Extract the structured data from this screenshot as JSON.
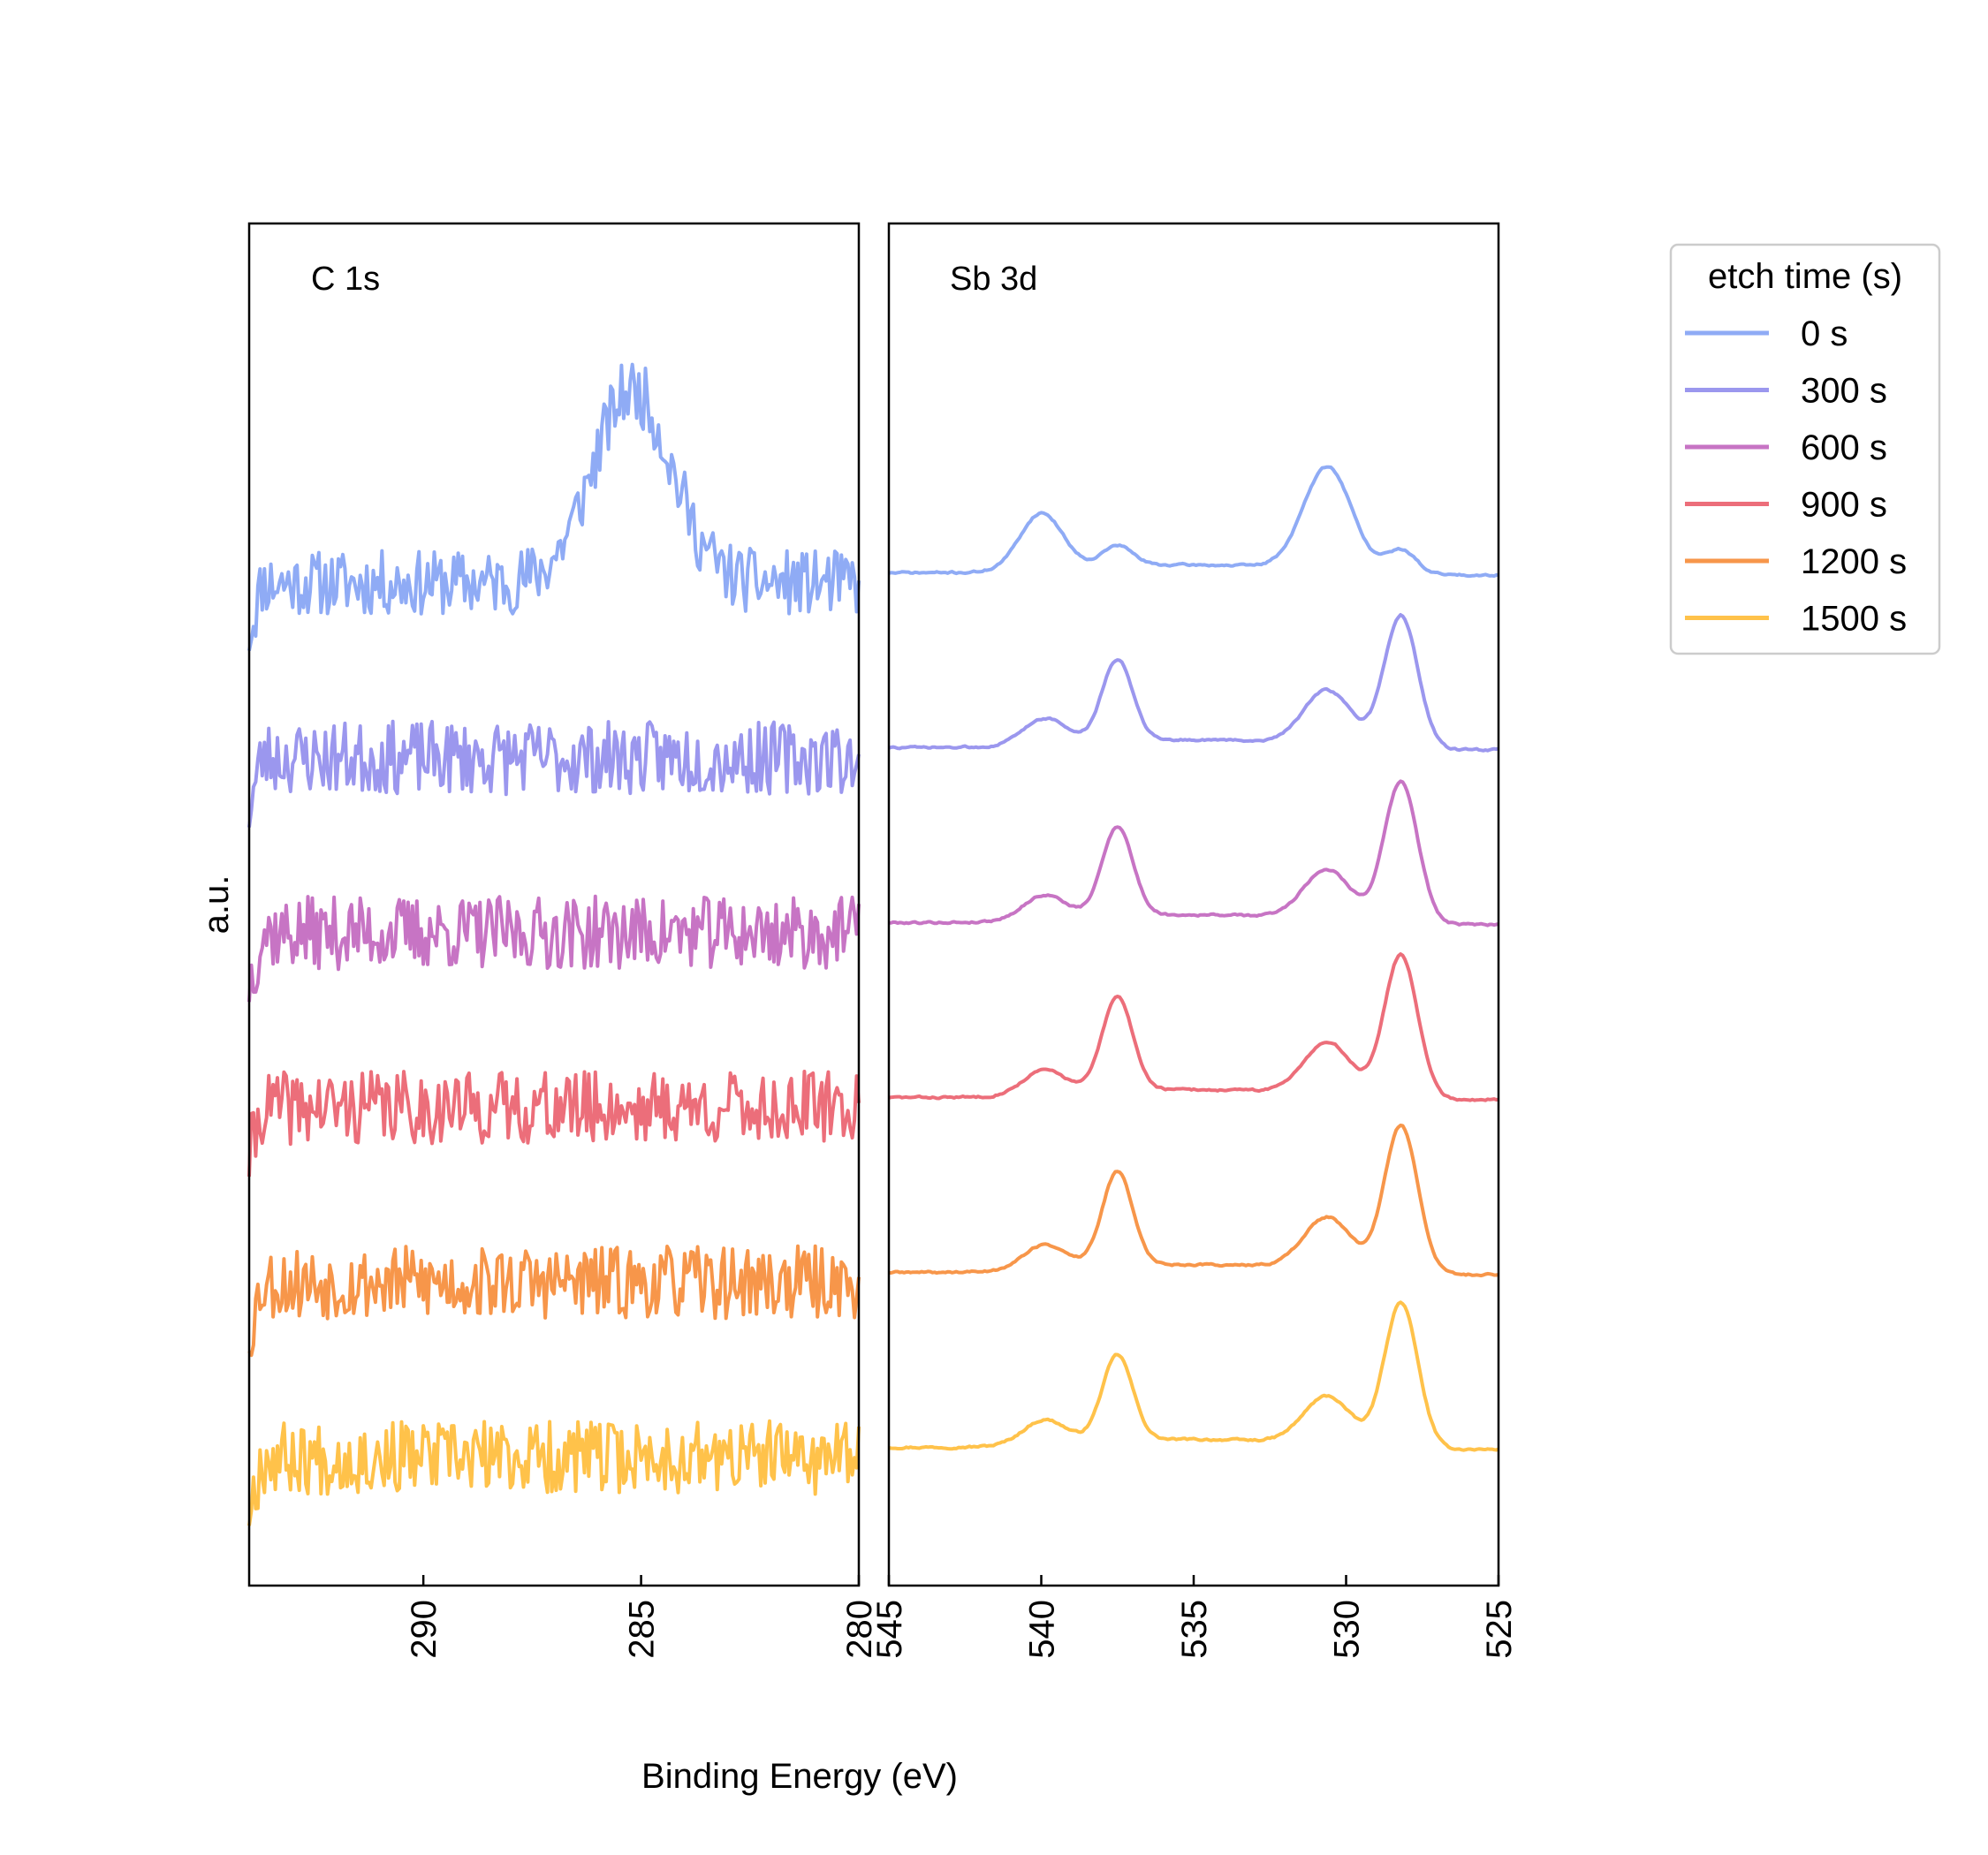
{
  "figure": {
    "ylabel": "a.u.",
    "xlabel": "Binding Energy (eV)"
  },
  "legend": {
    "title": "etch time (s)",
    "entries": [
      {
        "label": "0 s",
        "color": "#8FABF5"
      },
      {
        "label": "300 s",
        "color": "#9B97EE"
      },
      {
        "label": "600 s",
        "color": "#C774C4"
      },
      {
        "label": "900 s",
        "color": "#EC6E7A"
      },
      {
        "label": "1200 s",
        "color": "#F7964A"
      },
      {
        "label": "1500 s",
        "color": "#FFC24A"
      }
    ]
  },
  "chart_data": [
    {
      "type": "line",
      "panel_title": "C 1s",
      "xlim": [
        294,
        280
      ],
      "xticks": [
        290,
        285,
        280
      ],
      "x_reversed": true,
      "y_ticks_visible": false,
      "grid": false,
      "series": [
        {
          "name": "0 s",
          "color": "#8FABF5",
          "offset": 5,
          "peaks": [
            {
              "center": 285.2,
              "height": 0.95,
              "width": 0.9
            }
          ],
          "noise": 0.16,
          "seed": 11
        },
        {
          "name": "300 s",
          "color": "#9B97EE",
          "offset": 4,
          "peaks": [],
          "noise": 0.18,
          "seed": 23
        },
        {
          "name": "600 s",
          "color": "#C774C4",
          "offset": 3,
          "peaks": [],
          "noise": 0.18,
          "seed": 37
        },
        {
          "name": "900 s",
          "color": "#EC6E7A",
          "offset": 2,
          "peaks": [],
          "noise": 0.18,
          "seed": 41
        },
        {
          "name": "1200 s",
          "color": "#F7964A",
          "offset": 1,
          "peaks": [],
          "noise": 0.18,
          "seed": 53
        },
        {
          "name": "1500 s",
          "color": "#FFC24A",
          "offset": 0,
          "peaks": [],
          "noise": 0.18,
          "seed": 67
        }
      ]
    },
    {
      "type": "line",
      "panel_title": "Sb 3d",
      "xlim": [
        545,
        525
      ],
      "xticks": [
        545,
        540,
        535,
        530,
        525
      ],
      "x_reversed": true,
      "y_ticks_visible": false,
      "grid": false,
      "series": [
        {
          "name": "0 s",
          "color": "#8FABF5",
          "offset": 5,
          "peaks": [
            {
              "center": 540.0,
              "height": 0.28,
              "width": 0.7
            },
            {
              "center": 537.5,
              "height": 0.1,
              "width": 0.5
            },
            {
              "center": 530.6,
              "height": 0.52,
              "width": 0.8
            },
            {
              "center": 528.2,
              "height": 0.12,
              "width": 0.5
            }
          ],
          "noise": 0.01,
          "seed": 71
        },
        {
          "name": "300 s",
          "color": "#9B97EE",
          "offset": 4,
          "peaks": [
            {
              "center": 539.9,
              "height": 0.13,
              "width": 0.7
            },
            {
              "center": 537.5,
              "height": 0.4,
              "width": 0.5
            },
            {
              "center": 530.6,
              "height": 0.28,
              "width": 0.8
            },
            {
              "center": 528.2,
              "height": 0.66,
              "width": 0.55
            }
          ],
          "noise": 0.01,
          "seed": 73
        },
        {
          "name": "600 s",
          "color": "#C774C4",
          "offset": 3,
          "peaks": [
            {
              "center": 539.9,
              "height": 0.12,
              "width": 0.7
            },
            {
              "center": 537.5,
              "height": 0.44,
              "width": 0.5
            },
            {
              "center": 530.6,
              "height": 0.26,
              "width": 0.8
            },
            {
              "center": 528.2,
              "height": 0.7,
              "width": 0.55
            }
          ],
          "noise": 0.01,
          "seed": 79
        },
        {
          "name": "900 s",
          "color": "#EC6E7A",
          "offset": 2,
          "peaks": [
            {
              "center": 539.9,
              "height": 0.12,
              "width": 0.7
            },
            {
              "center": 537.5,
              "height": 0.46,
              "width": 0.5
            },
            {
              "center": 530.6,
              "height": 0.27,
              "width": 0.8
            },
            {
              "center": 528.2,
              "height": 0.71,
              "width": 0.55
            }
          ],
          "noise": 0.01,
          "seed": 83
        },
        {
          "name": "1200 s",
          "color": "#F7964A",
          "offset": 1,
          "peaks": [
            {
              "center": 539.9,
              "height": 0.12,
              "width": 0.7
            },
            {
              "center": 537.5,
              "height": 0.46,
              "width": 0.5
            },
            {
              "center": 530.6,
              "height": 0.27,
              "width": 0.8
            },
            {
              "center": 528.2,
              "height": 0.73,
              "width": 0.55
            }
          ],
          "noise": 0.01,
          "seed": 89
        },
        {
          "name": "1500 s",
          "color": "#FFC24A",
          "offset": 0,
          "peaks": [
            {
              "center": 539.9,
              "height": 0.12,
              "width": 0.7
            },
            {
              "center": 537.5,
              "height": 0.42,
              "width": 0.5
            },
            {
              "center": 530.6,
              "height": 0.25,
              "width": 0.8
            },
            {
              "center": 528.2,
              "height": 0.72,
              "width": 0.55
            }
          ],
          "noise": 0.01,
          "seed": 97
        }
      ]
    }
  ]
}
